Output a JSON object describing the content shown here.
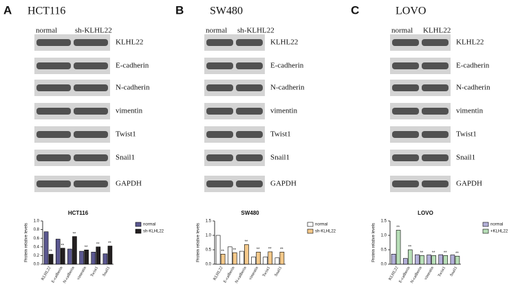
{
  "panels": [
    {
      "letter": "A",
      "cell_line": "HCT116",
      "lanes": [
        "normal",
        "sh-KLHL22"
      ],
      "proteins": [
        "KLHL22",
        "E-cadherin",
        "N-cadherin",
        "vimentin",
        "Twist1",
        "Snail1",
        "GAPDH"
      ]
    },
    {
      "letter": "B",
      "cell_line": "SW480",
      "lanes": [
        "normal",
        "sh-KLHL22"
      ],
      "proteins": [
        "KLHL22",
        "E-cadherin",
        "N-cadherin",
        "vimentin",
        "Twist1",
        "Snail1",
        "GAPDH"
      ]
    },
    {
      "letter": "C",
      "cell_line": "LOVO",
      "lanes": [
        "normal",
        "KLHL22"
      ],
      "proteins": [
        "KLHL22",
        "E-cadherin",
        "N-cadherin",
        "vimentin",
        "Twist1",
        "Snail1",
        "GAPDH"
      ]
    }
  ],
  "chart_data": [
    {
      "type": "bar",
      "title": "HCT116",
      "y_label": "Protein relative levels",
      "categories": [
        "KLHL22",
        "E-cadherin",
        "N-cadherin",
        "vimentin",
        "Twist1",
        "Snail1"
      ],
      "series": [
        {
          "name": "normal",
          "color": "#5b5891",
          "values": [
            0.75,
            0.58,
            0.35,
            0.3,
            0.28,
            0.24
          ]
        },
        {
          "name": "sh-KLHL22",
          "color": "#231f20",
          "values": [
            0.23,
            0.37,
            0.64,
            0.33,
            0.4,
            0.42
          ]
        }
      ],
      "annotations": [
        "**",
        "**",
        "**",
        "**",
        "**",
        "**"
      ],
      "ylim": [
        0,
        1.0
      ],
      "yticks": [
        {
          "value": 0,
          "label": "0.0"
        },
        {
          "value": 0.2,
          "label": "0.2"
        },
        {
          "value": 0.4,
          "label": "0.4"
        },
        {
          "value": 0.6,
          "label": "0.6"
        },
        {
          "value": 0.8,
          "label": "0.8"
        },
        {
          "value": 1.0,
          "label": "1.0"
        }
      ],
      "legend": "upper right"
    },
    {
      "type": "bar",
      "title": "SW480",
      "y_label": "Protein relative levels",
      "categories": [
        "KLHL22",
        "E-cadherin",
        "N-cadherin",
        "vimentin",
        "Twist1",
        "Snail1"
      ],
      "series": [
        {
          "name": "normal",
          "color": "#ffffff",
          "values": [
            1.0,
            0.6,
            0.45,
            0.25,
            0.25,
            0.22
          ]
        },
        {
          "name": "sh-KLHL22",
          "color": "#f5c98a",
          "values": [
            0.35,
            0.4,
            0.68,
            0.42,
            0.43,
            0.42
          ]
        }
      ],
      "annotations": [
        "**",
        "**",
        "**",
        "**",
        "**",
        "**"
      ],
      "ylim": [
        0,
        1.5
      ],
      "yticks": [
        {
          "value": 0,
          "label": "0.0"
        },
        {
          "value": 0.5,
          "label": "0.5"
        },
        {
          "value": 1.0,
          "label": "1.0"
        },
        {
          "value": 1.5,
          "label": "1.5"
        }
      ],
      "legend": "upper right"
    },
    {
      "type": "bar",
      "title": "LOVO",
      "y_label": "Protein relative levels",
      "categories": [
        "KLHL22",
        "E-cadherin",
        "N-cadherin",
        "vimentin",
        "Twist1",
        "Snail1"
      ],
      "series": [
        {
          "name": "normal",
          "color": "#b3b0d9",
          "values": [
            0.35,
            0.2,
            0.33,
            0.32,
            0.33,
            0.32
          ]
        },
        {
          "name": "+KLHL22",
          "color": "#b8dfb8",
          "values": [
            1.18,
            0.5,
            0.3,
            0.3,
            0.3,
            0.28
          ]
        }
      ],
      "annotations": [
        "**",
        "**",
        "**",
        "**",
        "**",
        "**"
      ],
      "ylim": [
        0,
        1.5
      ],
      "yticks": [
        {
          "value": 0,
          "label": "0.0"
        },
        {
          "value": 0.5,
          "label": "0.5"
        },
        {
          "value": 1.0,
          "label": "1.0"
        },
        {
          "value": 1.5,
          "label": "1.5"
        }
      ],
      "legend": "upper right"
    }
  ]
}
